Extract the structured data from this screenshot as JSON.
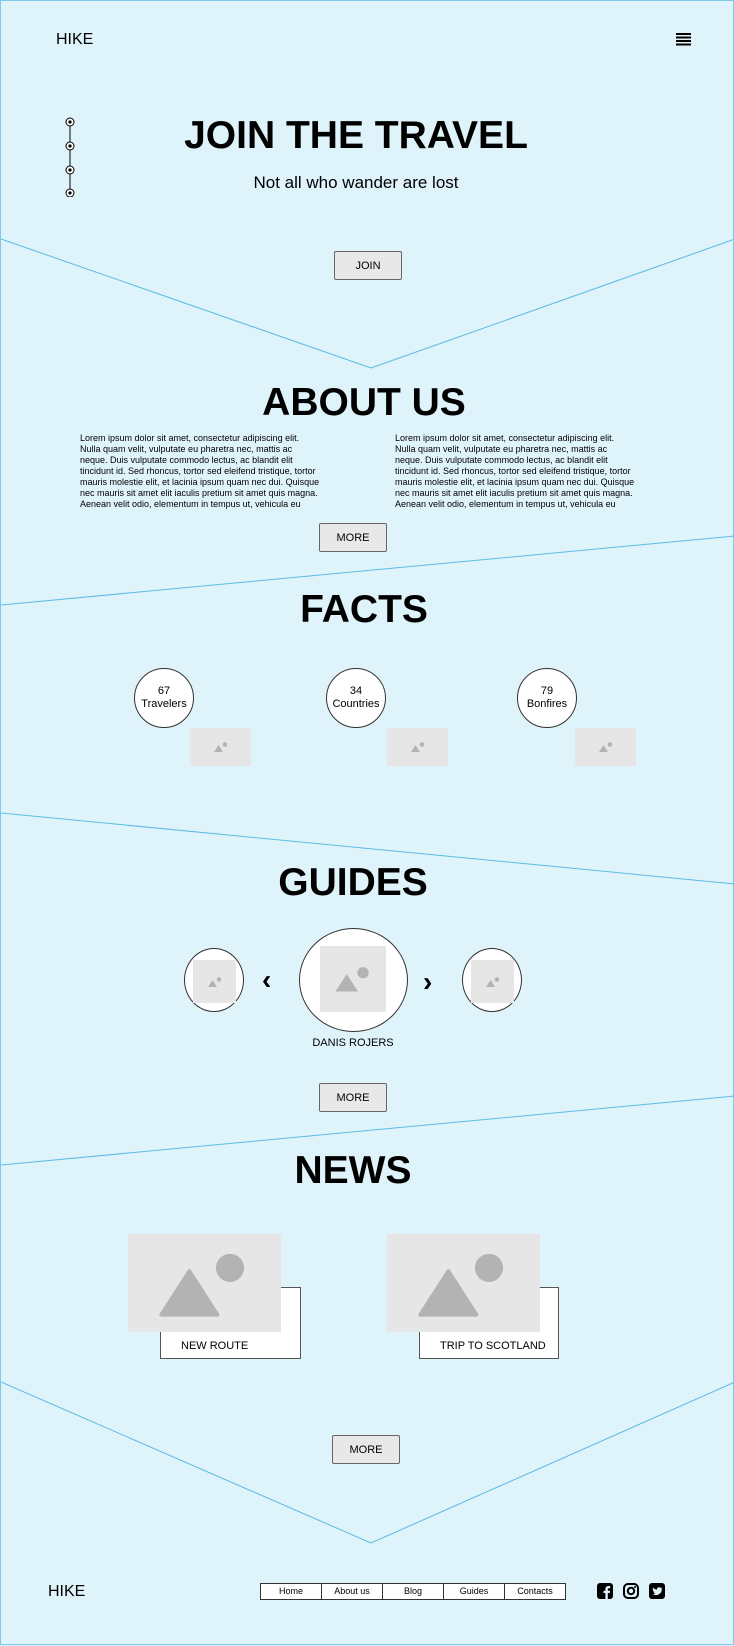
{
  "header": {
    "logo": "HIKE",
    "menu_icon": "hamburger-menu-icon"
  },
  "hero": {
    "title": "JOIN THE TRAVEL",
    "subtitle": "Not all who wander are lost",
    "join_label": "JOIN"
  },
  "about": {
    "title": "ABOUT US",
    "col1": "Lorem ipsum dolor sit amet, consectetur adipiscing elit. Nulla quam velit, vulputate eu pharetra nec, mattis ac neque. Duis vulputate commodo lectus, ac blandit elit tincidunt id. Sed rhoncus, tortor sed eleifend tristique, tortor mauris molestie elit, et lacinia ipsum quam nec dui. Quisque nec mauris sit amet elit iaculis pretium sit amet quis magna. Aenean velit odio, elementum in tempus ut, vehicula eu",
    "col2": "Lorem ipsum dolor sit amet, consectetur adipiscing elit. Nulla quam velit, vulputate eu pharetra nec, mattis ac neque. Duis vulputate commodo lectus, ac blandit elit tincidunt id. Sed rhoncus, tortor sed eleifend tristique, tortor mauris molestie elit, et lacinia ipsum quam nec dui. Quisque nec mauris sit amet elit iaculis pretium sit amet quis magna. Aenean velit odio, elementum in tempus ut, vehicula eu",
    "more_label": "MORE"
  },
  "facts": {
    "title": "FACTS",
    "items": [
      {
        "value": "67",
        "label": "Travelers"
      },
      {
        "value": "34",
        "label": "Countries"
      },
      {
        "value": "79",
        "label": "Bonfires"
      }
    ]
  },
  "guides": {
    "title": "GUIDES",
    "name": "DANIS ROJERS",
    "prev": "‹",
    "next": "›",
    "more_label": "MORE"
  },
  "news": {
    "title": "NEWS",
    "items": [
      {
        "label": "NEW ROUTE"
      },
      {
        "label": "TRIP TO SCOTLAND"
      }
    ],
    "more_label": "MORE"
  },
  "footer": {
    "logo": "HIKE",
    "nav": [
      "Home",
      "About us",
      "Blog",
      "Guides",
      "Contacts"
    ],
    "social": [
      "facebook-icon",
      "instagram-icon",
      "twitter-icon"
    ]
  },
  "colors": {
    "background": "#dff3fb",
    "line": "#5bbbe3",
    "placeholder": "#e6e6e6",
    "placeholder_icon": "#b3b3b3"
  }
}
